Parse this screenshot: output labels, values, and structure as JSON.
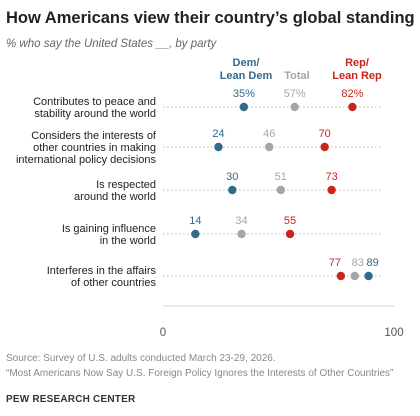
{
  "title": "How Americans view their country’s global standing",
  "subtitle": "% who say the United States __, by party",
  "legend": {
    "dem": [
      "Dem/",
      "Lean Dem"
    ],
    "total": "Total",
    "rep": [
      "Rep/",
      "Lean Rep"
    ]
  },
  "colors": {
    "dem": "#336a8c",
    "total": "#a6a6a6",
    "rep": "#c8261d"
  },
  "chart_data": {
    "type": "dot",
    "xlim": [
      0,
      100
    ],
    "xticks": [
      "0",
      "100"
    ],
    "categories": [
      [
        "Contributes to peace and",
        "stability around the world"
      ],
      [
        "Considers the interests of",
        "other countries in making",
        "international policy decisions"
      ],
      [
        "Is respected",
        "around the world"
      ],
      [
        "Is gaining influence",
        "in the world"
      ],
      [
        "Interferes in the affairs",
        "of other countries"
      ]
    ],
    "series": [
      {
        "name": "Dem/Lean Dem",
        "key": "dem",
        "values": [
          35,
          24,
          30,
          14,
          89
        ],
        "labels": [
          "35%",
          "24",
          "30",
          "14",
          "89"
        ]
      },
      {
        "name": "Total",
        "key": "total",
        "values": [
          57,
          46,
          51,
          34,
          83
        ],
        "labels": [
          "57%",
          "46",
          "51",
          "34",
          "83"
        ]
      },
      {
        "name": "Rep/Lean Rep",
        "key": "rep",
        "values": [
          82,
          70,
          73,
          55,
          77
        ],
        "labels": [
          "82%",
          "70",
          "73",
          "55",
          "77"
        ]
      }
    ]
  },
  "footer": {
    "source": "Source: Survey of U.S. adults conducted March 23-29, 2026.",
    "report": "“Most Americans Now Say U.S. Foreign Policy Ignores the Interests of Other Countries”",
    "org": "PEW RESEARCH CENTER"
  }
}
